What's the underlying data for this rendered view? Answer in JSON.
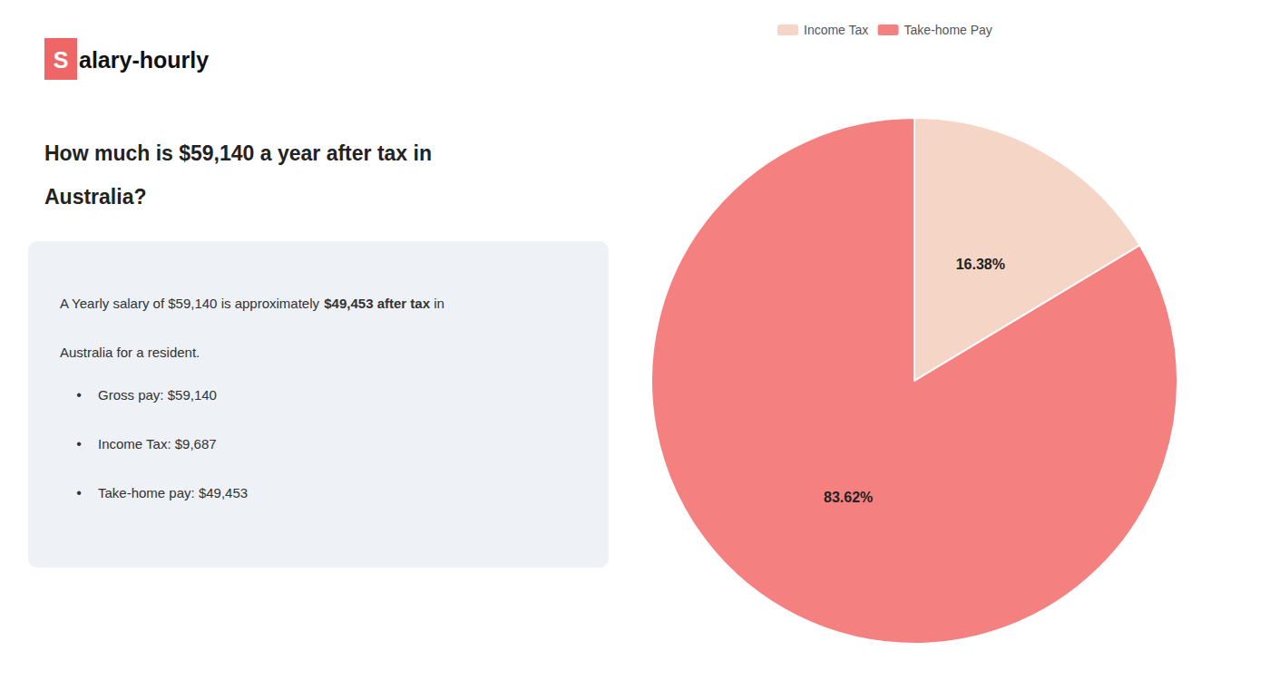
{
  "chart_data": {
    "type": "pie",
    "categories": [
      "Income Tax",
      "Take-home Pay"
    ],
    "values": [
      16.38,
      83.62
    ],
    "value_labels": [
      "16.38%",
      "83.62%"
    ],
    "colors": [
      "#f5d5c5",
      "#f48080"
    ],
    "data_labels": true,
    "legend": "top",
    "annotations": [
      "S",
      "alary-hourly",
      "How much is $59,140 a year after tax in",
      "Australia?",
      "A Yearly salary of $59,140 is approximately ",
      "$49,453 after tax",
      " in",
      "Australia for a resident.",
      "•",
      "Gross pay: $59,140",
      "•",
      "Income Tax: $9,687",
      "•",
      "Take-home pay: $49,453"
    ]
  }
}
